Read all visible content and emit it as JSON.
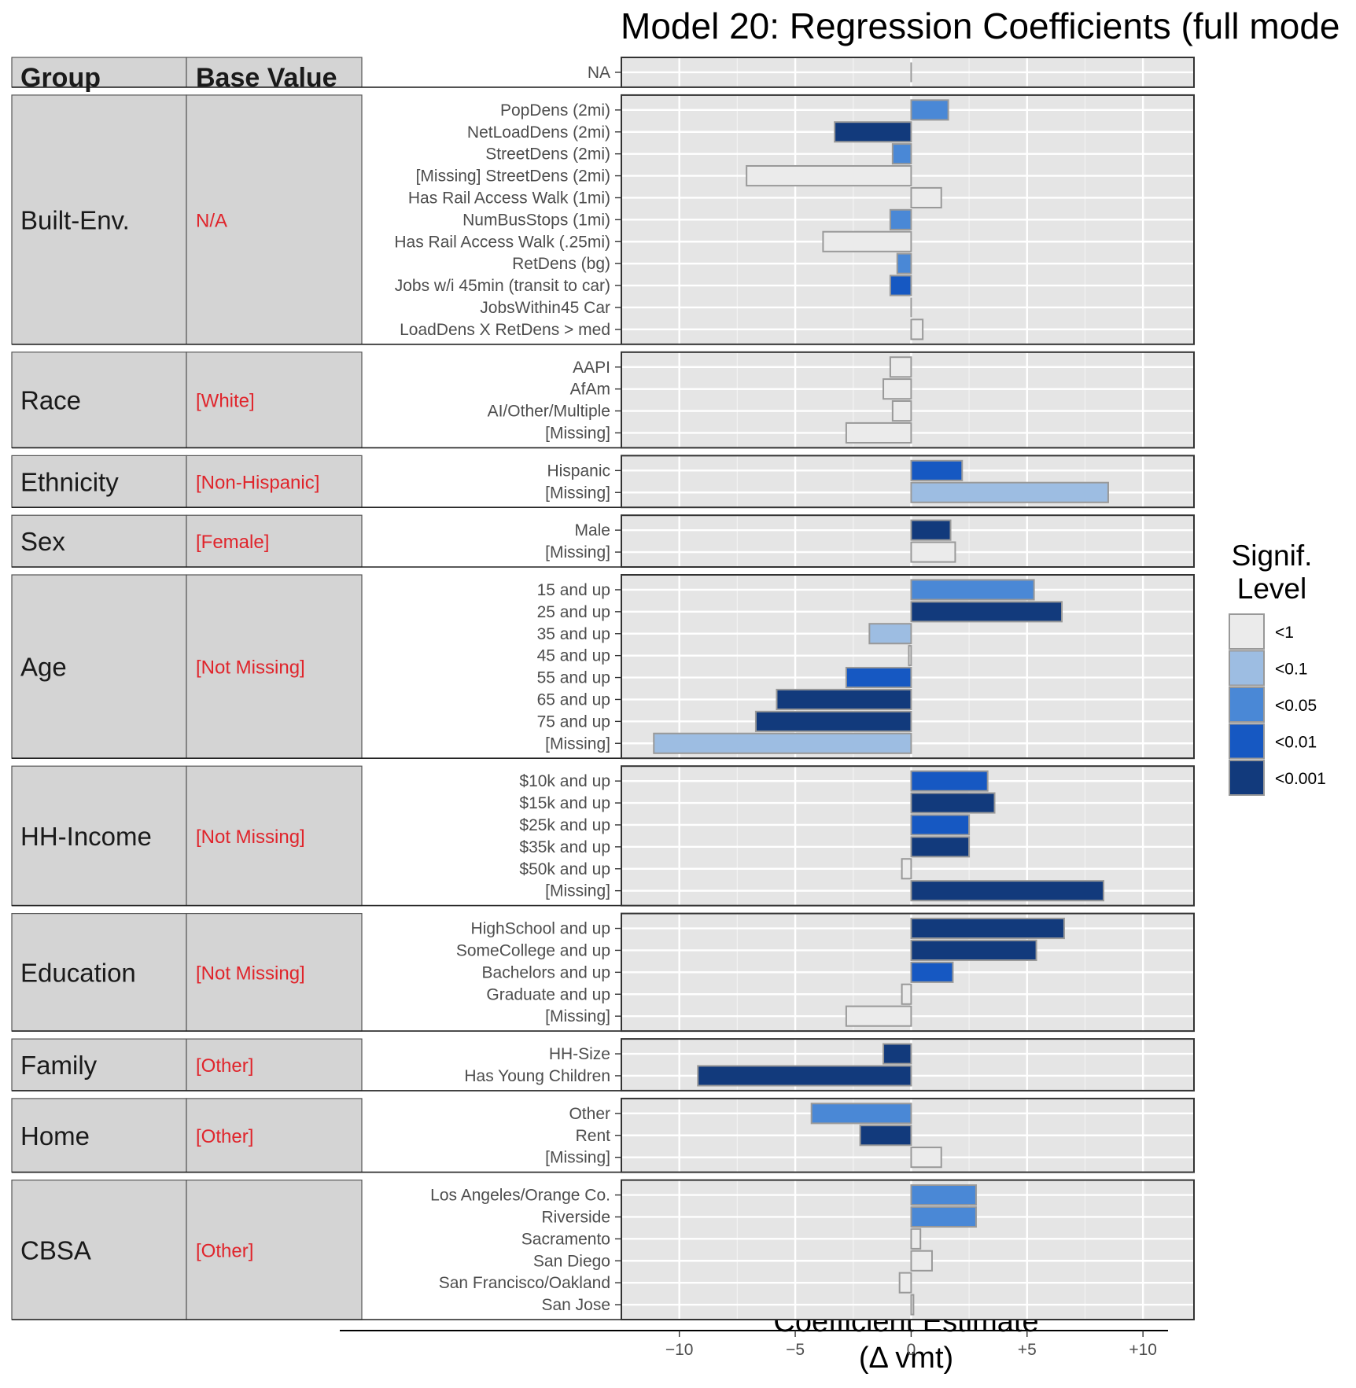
{
  "chart_data": {
    "type": "bar",
    "orientation": "horizontal",
    "title": "Model 20: Regression Coefficients (full mode",
    "xlabel": "Coefficient Estimate",
    "xlabel_line2": "(Δ vmt)",
    "xlim": [
      -12.5,
      12.2
    ],
    "x_ticks": [
      -10,
      -5,
      0,
      5,
      10
    ],
    "x_tick_labels": [
      "−10",
      "−5",
      "0",
      "+5",
      "+10"
    ],
    "grid": true,
    "table_headers": {
      "group": "Group",
      "base": "Base Value"
    },
    "legend": {
      "title_line1": "Signif.",
      "title_line2": "Level",
      "position": "right",
      "levels": [
        {
          "label": "<1",
          "color": "#ebebeb"
        },
        {
          "label": "<0.1",
          "color": "#9dbde2"
        },
        {
          "label": "<0.05",
          "color": "#4a88d6"
        },
        {
          "label": "<0.01",
          "color": "#1658c2"
        },
        {
          "label": "<0.001",
          "color": "#123a7c"
        }
      ]
    },
    "groups": [
      {
        "name": "",
        "base": "",
        "header": true,
        "rows": [
          {
            "label": "NA",
            "value": 0,
            "level": 0
          }
        ]
      },
      {
        "name": "Built-Env.",
        "base": "N/A",
        "rows": [
          {
            "label": "PopDens (2mi)",
            "value": 1.6,
            "level": 2
          },
          {
            "label": "NetLoadDens (2mi)",
            "value": -3.3,
            "level": 4
          },
          {
            "label": "StreetDens (2mi)",
            "value": -0.8,
            "level": 2
          },
          {
            "label": "[Missing] StreetDens (2mi)",
            "value": -7.1,
            "level": 0
          },
          {
            "label": "Has Rail Access Walk (1mi)",
            "value": 1.3,
            "level": 0
          },
          {
            "label": "NumBusStops (1mi)",
            "value": -0.9,
            "level": 2
          },
          {
            "label": "Has Rail Access Walk (.25mi)",
            "value": -3.8,
            "level": 0
          },
          {
            "label": "RetDens (bg)",
            "value": -0.6,
            "level": 2
          },
          {
            "label": "Jobs w/i 45min (transit to car)",
            "value": -0.9,
            "level": 3
          },
          {
            "label": "JobsWithin45 Car",
            "value": 0,
            "level": 0
          },
          {
            "label": "LoadDens X RetDens > med",
            "value": 0.5,
            "level": 0
          }
        ]
      },
      {
        "name": "Race",
        "base": "[White]",
        "rows": [
          {
            "label": "AAPI",
            "value": -0.9,
            "level": 0
          },
          {
            "label": "AfAm",
            "value": -1.2,
            "level": 0
          },
          {
            "label": "AI/Other/Multiple",
            "value": -0.8,
            "level": 0
          },
          {
            "label": "[Missing]",
            "value": -2.8,
            "level": 0
          }
        ]
      },
      {
        "name": "Ethnicity",
        "base": "[Non-Hispanic]",
        "rows": [
          {
            "label": "Hispanic",
            "value": 2.2,
            "level": 3
          },
          {
            "label": "[Missing]",
            "value": 8.5,
            "level": 1
          }
        ]
      },
      {
        "name": "Sex",
        "base": "[Female]",
        "rows": [
          {
            "label": "Male",
            "value": 1.7,
            "level": 4
          },
          {
            "label": "[Missing]",
            "value": 1.9,
            "level": 0
          }
        ]
      },
      {
        "name": "Age",
        "base": "[Not Missing]",
        "rows": [
          {
            "label": "15 and up",
            "value": 5.3,
            "level": 2
          },
          {
            "label": "25 and up",
            "value": 6.5,
            "level": 4
          },
          {
            "label": "35 and up",
            "value": -1.8,
            "level": 1
          },
          {
            "label": "45 and up",
            "value": -0.1,
            "level": 0
          },
          {
            "label": "55 and up",
            "value": -2.8,
            "level": 3
          },
          {
            "label": "65 and up",
            "value": -5.8,
            "level": 4
          },
          {
            "label": "75 and up",
            "value": -6.7,
            "level": 4
          },
          {
            "label": "[Missing]",
            "value": -11.1,
            "level": 1
          }
        ]
      },
      {
        "name": "HH-Income",
        "base": "[Not Missing]",
        "rows": [
          {
            "label": "$10k and up",
            "value": 3.3,
            "level": 3
          },
          {
            "label": "$15k and up",
            "value": 3.6,
            "level": 4
          },
          {
            "label": "$25k and up",
            "value": 2.5,
            "level": 3
          },
          {
            "label": "$35k and up",
            "value": 2.5,
            "level": 4
          },
          {
            "label": "$50k and up",
            "value": -0.4,
            "level": 0
          },
          {
            "label": "[Missing]",
            "value": 8.3,
            "level": 4
          }
        ]
      },
      {
        "name": "Education",
        "base": "[Not Missing]",
        "rows": [
          {
            "label": "HighSchool and up",
            "value": 6.6,
            "level": 4
          },
          {
            "label": "SomeCollege and up",
            "value": 5.4,
            "level": 4
          },
          {
            "label": "Bachelors and up",
            "value": 1.8,
            "level": 3
          },
          {
            "label": "Graduate and up",
            "value": -0.4,
            "level": 0
          },
          {
            "label": "[Missing]",
            "value": -2.8,
            "level": 0
          }
        ]
      },
      {
        "name": "Family",
        "base": "[Other]",
        "rows": [
          {
            "label": "HH-Size",
            "value": -1.2,
            "level": 4
          },
          {
            "label": "Has Young Children",
            "value": -9.2,
            "level": 4
          }
        ]
      },
      {
        "name": "Home",
        "base": "[Other]",
        "rows": [
          {
            "label": "Other",
            "value": -4.3,
            "level": 2
          },
          {
            "label": "Rent",
            "value": -2.2,
            "level": 4
          },
          {
            "label": "[Missing]",
            "value": 1.3,
            "level": 0
          }
        ]
      },
      {
        "name": "CBSA",
        "base": "[Other]",
        "rows": [
          {
            "label": "Los Angeles/Orange Co.",
            "value": 2.8,
            "level": 2
          },
          {
            "label": "Riverside",
            "value": 2.8,
            "level": 2
          },
          {
            "label": "Sacramento",
            "value": 0.4,
            "level": 0
          },
          {
            "label": "San Diego",
            "value": 0.9,
            "level": 0
          },
          {
            "label": "San Francisco/Oakland",
            "value": -0.5,
            "level": 0
          },
          {
            "label": "San Jose",
            "value": 0.1,
            "level": 0
          }
        ]
      }
    ]
  }
}
